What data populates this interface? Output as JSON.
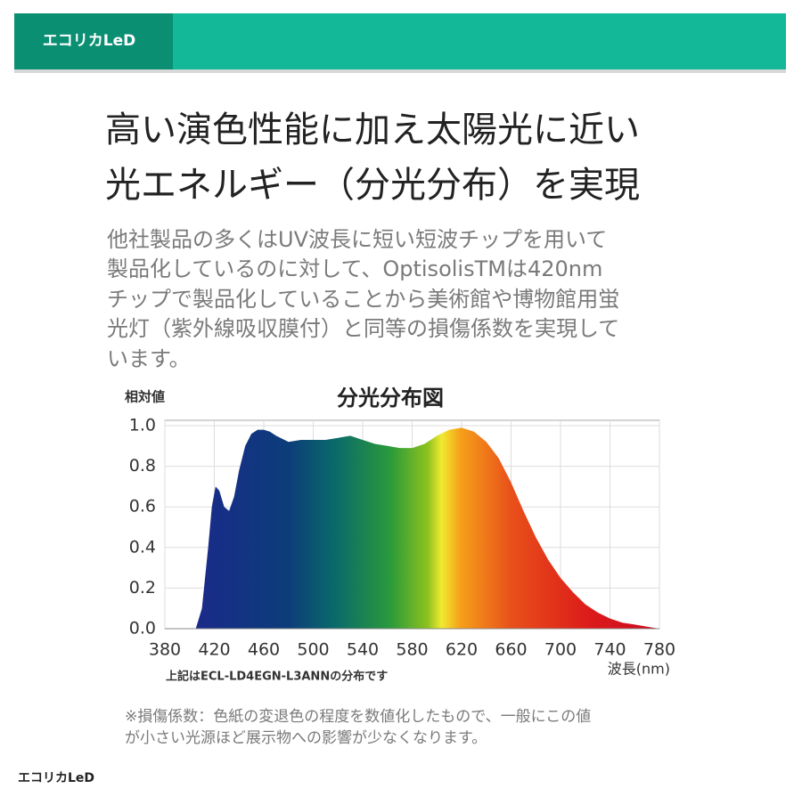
{
  "header": {
    "logo": "エコリカLeD"
  },
  "heading": {
    "lines": [
      "高い演色性能に加え太陽光に近い",
      "光エネルギー（分光分布）を実現"
    ]
  },
  "body": {
    "lines": [
      "他社製品の多くはUV波長に短い短波チップを用いて",
      "製品化しているのに対して、OptisolisTMは420nm",
      "チップで製品化していることから美術館や博物館用蛍",
      "光灯（紫外線吸収膜付）と同等の損傷係数を実現して",
      "います。"
    ]
  },
  "chart_data": {
    "type": "area",
    "title": "分光分布図",
    "y_label": "相対値",
    "x_label": "波長(nm)",
    "note": "上記はECL-LD4EGN-L3ANNの分布です",
    "x": [
      405,
      410,
      415,
      418,
      421,
      424,
      428,
      432,
      436,
      440,
      445,
      450,
      455,
      460,
      465,
      470,
      480,
      490,
      500,
      510,
      520,
      530,
      540,
      550,
      560,
      570,
      580,
      590,
      600,
      610,
      620,
      630,
      640,
      650,
      660,
      670,
      680,
      690,
      700,
      710,
      720,
      730,
      740,
      750,
      760,
      770,
      780
    ],
    "values": [
      0,
      0.1,
      0.4,
      0.6,
      0.7,
      0.68,
      0.6,
      0.58,
      0.65,
      0.78,
      0.9,
      0.96,
      0.98,
      0.98,
      0.97,
      0.95,
      0.92,
      0.93,
      0.93,
      0.93,
      0.94,
      0.95,
      0.93,
      0.91,
      0.9,
      0.89,
      0.89,
      0.91,
      0.95,
      0.98,
      0.99,
      0.97,
      0.92,
      0.84,
      0.72,
      0.58,
      0.45,
      0.34,
      0.25,
      0.18,
      0.12,
      0.08,
      0.05,
      0.03,
      0.02,
      0.01,
      0
    ],
    "xlim": [
      380,
      780
    ],
    "xticks": [
      380,
      420,
      460,
      500,
      540,
      580,
      620,
      660,
      700,
      740,
      780
    ],
    "ylim": [
      0,
      1
    ],
    "yticks": [
      {
        "value": 0,
        "label": "0.0"
      },
      0.2,
      0.4,
      0.6,
      0.8,
      {
        "value": 1,
        "label": "1.0"
      }
    ],
    "grid": true
  },
  "footnote": {
    "lines": [
      "※損傷係数：色紙の変退色の程度を数値化したもので、一般にこの値",
      "が小さい光源ほど展示物への影響が少なくなります。"
    ]
  },
  "footer": {
    "logo": "エコリカLeD"
  }
}
